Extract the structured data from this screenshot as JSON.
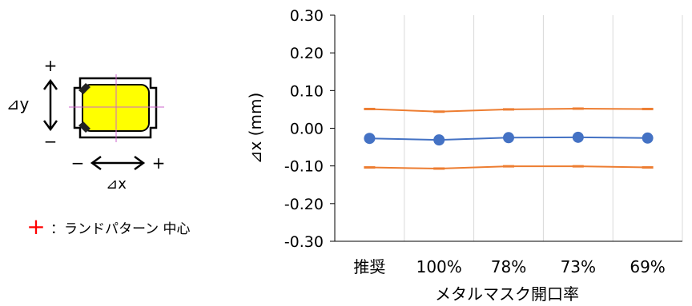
{
  "diagram": {
    "y_label": "⊿y",
    "x_label": "⊿x",
    "plus": "+",
    "minus": "−",
    "legend_marker": "+",
    "legend_text": "：ランドパターン 中心",
    "colors": {
      "component_body": "#ffff00",
      "land_center_marker": "#ff0000",
      "crosshair": "#cc66cc"
    }
  },
  "chart_data": {
    "type": "line",
    "categories": [
      "推奨",
      "100%",
      "78%",
      "73%",
      "69%"
    ],
    "xlabel": "メタルマスク開口率",
    "ylabel": "⊿x (mm)",
    "ylim": [
      -0.3,
      0.3
    ],
    "yticks": [
      "0.30",
      "0.20",
      "0.10",
      "0.00",
      "-0.10",
      "-0.20",
      "-0.30"
    ],
    "grid": "vertical",
    "legend": "none",
    "series": [
      {
        "values": [
          0.051,
          0.044,
          0.05,
          0.052,
          0.051
        ],
        "color": "#ed7d31",
        "marker": "dash"
      },
      {
        "values": [
          -0.027,
          -0.031,
          -0.025,
          -0.024,
          -0.026
        ],
        "color": "#4472c4",
        "marker": "circle"
      },
      {
        "values": [
          -0.104,
          -0.107,
          -0.101,
          -0.101,
          -0.104
        ],
        "color": "#ed7d31",
        "marker": "dash"
      }
    ]
  }
}
